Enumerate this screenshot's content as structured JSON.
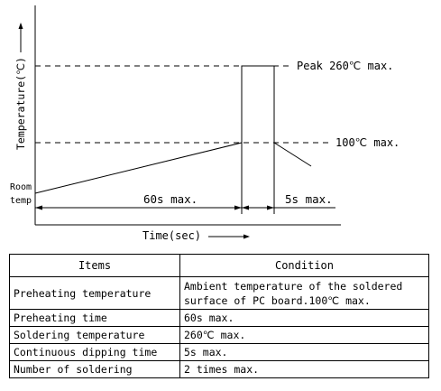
{
  "chart_data": {
    "type": "line",
    "xlabel": "Time(sec)",
    "ylabel": "Temperature(℃)",
    "y_axis_label_start": "Room temp",
    "reference_lines": [
      {
        "label": "Peak 260℃ max.",
        "value": 260
      },
      {
        "label": "100℃ max.",
        "value": 100
      }
    ],
    "intervals": [
      {
        "label": "60s max.",
        "phase": "preheating"
      },
      {
        "label": "5s max.",
        "phase": "dipping"
      }
    ],
    "profile_description_values": {
      "room_temp": "Room temp",
      "preheat_end_temp": 100,
      "peak_temp": 260
    }
  },
  "table": {
    "headers": [
      "Items",
      "Condition"
    ],
    "rows": [
      {
        "item": "Preheating temperature",
        "condition_lines": [
          "Ambient temperature of the soldered",
          "surface of  PC board.100℃ max."
        ]
      },
      {
        "item": "Preheating time",
        "condition_lines": [
          "60s max."
        ]
      },
      {
        "item": "Soldering temperature",
        "condition_lines": [
          "260℃ max."
        ]
      },
      {
        "item": "Continuous dipping time",
        "condition_lines": [
          "5s max."
        ]
      },
      {
        "item": "Number of soldering",
        "condition_lines": [
          "2 times max."
        ]
      }
    ]
  }
}
